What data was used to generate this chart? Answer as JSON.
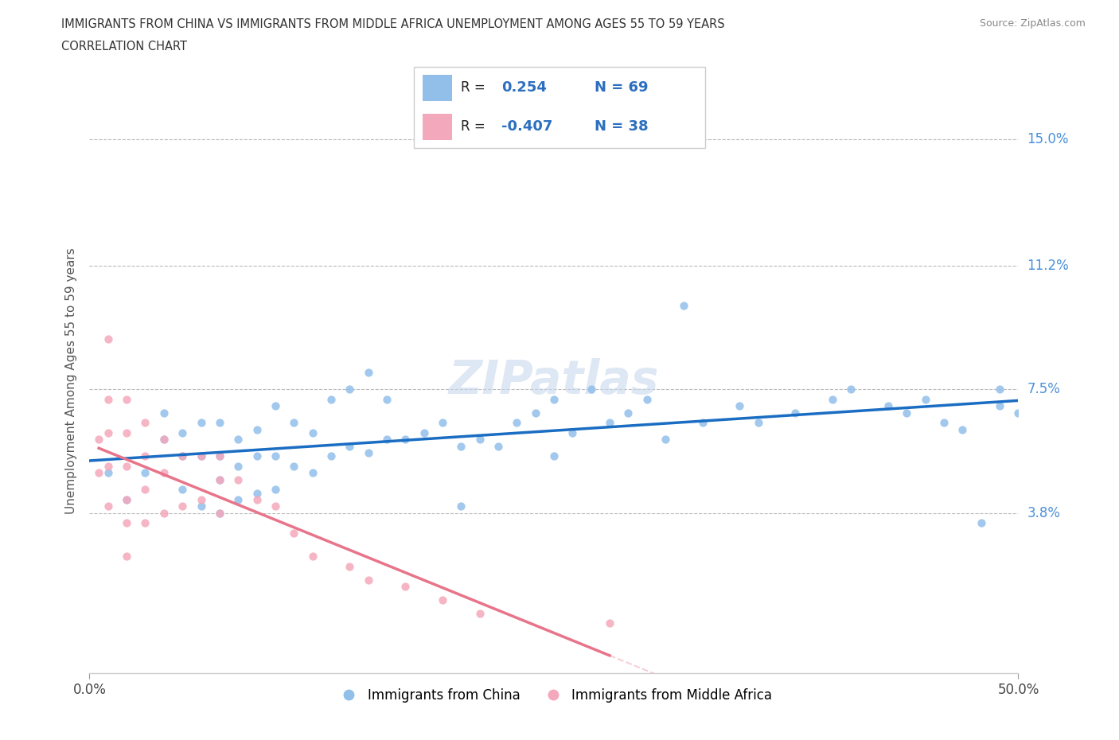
{
  "title_line1": "IMMIGRANTS FROM CHINA VS IMMIGRANTS FROM MIDDLE AFRICA UNEMPLOYMENT AMONG AGES 55 TO 59 YEARS",
  "title_line2": "CORRELATION CHART",
  "source": "Source: ZipAtlas.com",
  "ylabel": "Unemployment Among Ages 55 to 59 years",
  "xlim": [
    0,
    0.5
  ],
  "ylim": [
    -0.01,
    0.165
  ],
  "yticks": [
    0.038,
    0.075,
    0.112,
    0.15
  ],
  "ytick_labels": [
    "3.8%",
    "7.5%",
    "11.2%",
    "15.0%"
  ],
  "xticks": [
    0.0,
    0.5
  ],
  "xtick_labels": [
    "0.0%",
    "50.0%"
  ],
  "china_R": 0.254,
  "china_N": 69,
  "africa_R": -0.407,
  "africa_N": 38,
  "china_color": "#92BFEA",
  "africa_color": "#F4A8BB",
  "line_china_color": "#1A6DC2",
  "line_africa_color": "#E8748A",
  "watermark": "ZIPatlas",
  "legend_label_china": "Immigrants from China",
  "legend_label_africa": "Immigrants from Middle Africa",
  "china_x": [
    0.01,
    0.02,
    0.03,
    0.04,
    0.04,
    0.05,
    0.05,
    0.05,
    0.06,
    0.06,
    0.06,
    0.07,
    0.07,
    0.07,
    0.07,
    0.08,
    0.08,
    0.08,
    0.09,
    0.09,
    0.09,
    0.1,
    0.1,
    0.1,
    0.11,
    0.11,
    0.12,
    0.12,
    0.13,
    0.13,
    0.14,
    0.14,
    0.15,
    0.15,
    0.16,
    0.16,
    0.17,
    0.18,
    0.19,
    0.2,
    0.2,
    0.21,
    0.22,
    0.23,
    0.24,
    0.25,
    0.25,
    0.26,
    0.27,
    0.28,
    0.29,
    0.3,
    0.31,
    0.32,
    0.33,
    0.35,
    0.36,
    0.38,
    0.4,
    0.41,
    0.43,
    0.44,
    0.45,
    0.46,
    0.47,
    0.48,
    0.49,
    0.49,
    0.5
  ],
  "china_y": [
    0.05,
    0.042,
    0.05,
    0.06,
    0.068,
    0.045,
    0.055,
    0.062,
    0.04,
    0.055,
    0.065,
    0.038,
    0.048,
    0.055,
    0.065,
    0.042,
    0.052,
    0.06,
    0.044,
    0.055,
    0.063,
    0.045,
    0.055,
    0.07,
    0.052,
    0.065,
    0.05,
    0.062,
    0.055,
    0.072,
    0.058,
    0.075,
    0.056,
    0.08,
    0.06,
    0.072,
    0.06,
    0.062,
    0.065,
    0.04,
    0.058,
    0.06,
    0.058,
    0.065,
    0.068,
    0.055,
    0.072,
    0.062,
    0.075,
    0.065,
    0.068,
    0.072,
    0.06,
    0.1,
    0.065,
    0.07,
    0.065,
    0.068,
    0.072,
    0.075,
    0.07,
    0.068,
    0.072,
    0.065,
    0.063,
    0.035,
    0.07,
    0.075,
    0.068
  ],
  "africa_x": [
    0.005,
    0.005,
    0.01,
    0.01,
    0.01,
    0.01,
    0.01,
    0.02,
    0.02,
    0.02,
    0.02,
    0.02,
    0.02,
    0.03,
    0.03,
    0.03,
    0.03,
    0.04,
    0.04,
    0.04,
    0.05,
    0.05,
    0.06,
    0.06,
    0.07,
    0.07,
    0.07,
    0.08,
    0.09,
    0.1,
    0.11,
    0.12,
    0.14,
    0.15,
    0.17,
    0.19,
    0.21,
    0.28
  ],
  "africa_y": [
    0.06,
    0.05,
    0.09,
    0.072,
    0.062,
    0.052,
    0.04,
    0.072,
    0.062,
    0.052,
    0.042,
    0.035,
    0.025,
    0.065,
    0.055,
    0.045,
    0.035,
    0.06,
    0.05,
    0.038,
    0.055,
    0.04,
    0.055,
    0.042,
    0.055,
    0.048,
    0.038,
    0.048,
    0.042,
    0.04,
    0.032,
    0.025,
    0.022,
    0.018,
    0.016,
    0.012,
    0.008,
    0.005
  ]
}
